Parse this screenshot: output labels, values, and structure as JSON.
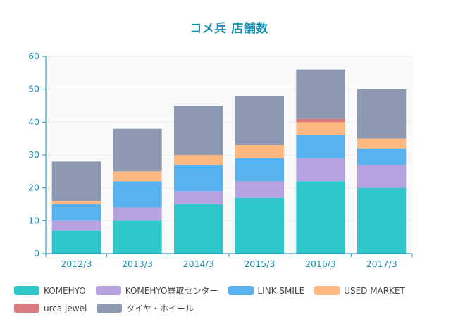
{
  "chart_data": {
    "type": "bar",
    "stacked": true,
    "title": "コメ兵 店舗数",
    "categories": [
      "2012/3",
      "2013/3",
      "2014/3",
      "2015/3",
      "2016/3",
      "2017/3"
    ],
    "ylim": [
      0,
      60
    ],
    "yticks": [
      0,
      10,
      20,
      30,
      40,
      50,
      60
    ],
    "grid": true,
    "legend_position": "bottom",
    "series": [
      {
        "name": "KOMEHYO",
        "color": "#2ec7c9",
        "values": [
          7,
          10,
          15,
          17,
          22,
          20
        ]
      },
      {
        "name": "KOMEHYO買取センター",
        "color": "#b6a2de",
        "values": [
          3,
          4,
          4,
          5,
          7,
          7
        ]
      },
      {
        "name": "LINK SMILE",
        "color": "#5ab1ef",
        "values": [
          5,
          8,
          8,
          7,
          7,
          5
        ]
      },
      {
        "name": "USED MARKET",
        "color": "#ffb980",
        "values": [
          1,
          3,
          3,
          4,
          4,
          3
        ]
      },
      {
        "name": "urca jewel",
        "color": "#d87a80",
        "values": [
          0,
          0,
          0,
          0,
          1,
          0
        ]
      },
      {
        "name": "タイヤ・ホイール",
        "color": "#8d98b3",
        "values": [
          12,
          13,
          15,
          15,
          15,
          15
        ]
      }
    ]
  }
}
